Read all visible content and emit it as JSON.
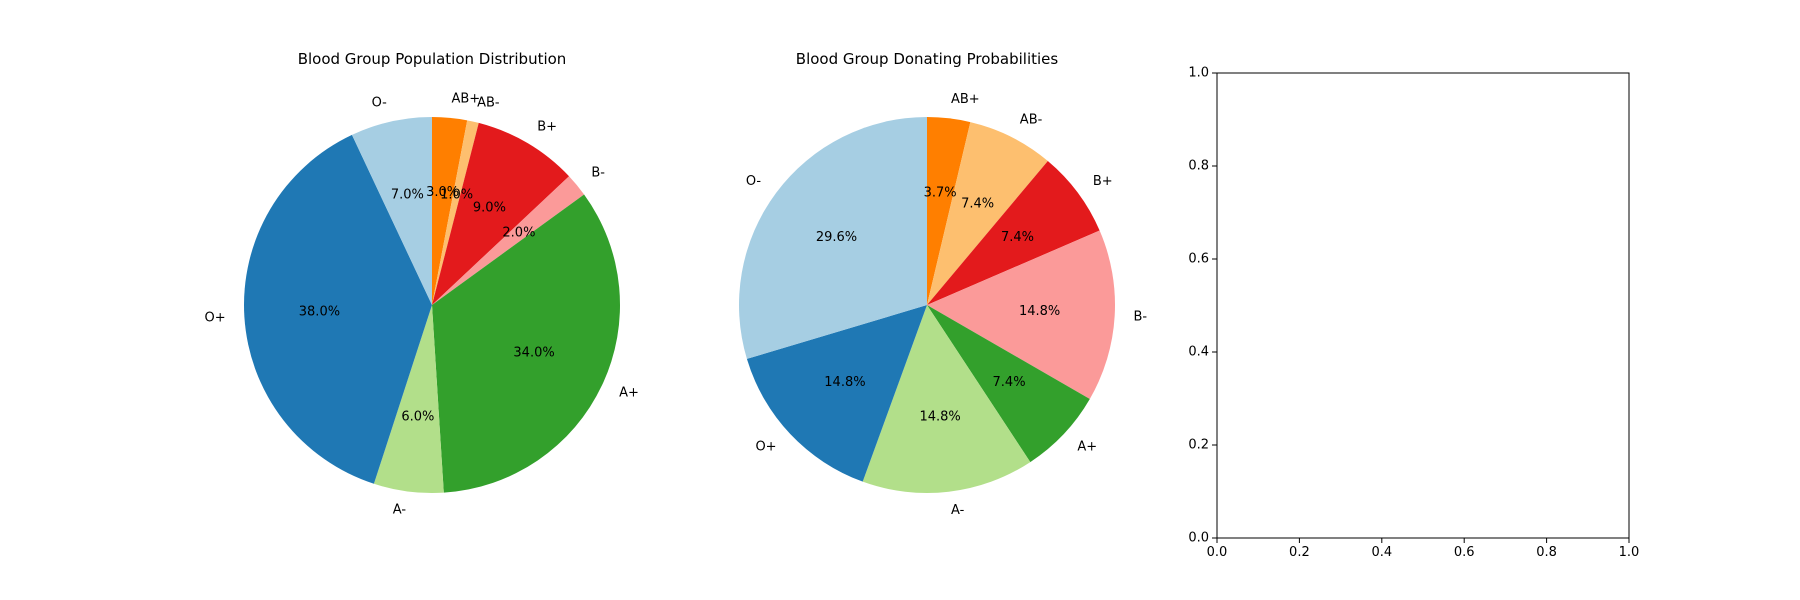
{
  "chart_data": [
    {
      "type": "pie",
      "title": "Blood Group Population Distribution",
      "labels": [
        "AB+",
        "AB-",
        "B+",
        "B-",
        "A+",
        "A-",
        "O+",
        "O-"
      ],
      "values": [
        3.0,
        1.0,
        9.0,
        2.0,
        34.0,
        6.0,
        38.0,
        7.0
      ],
      "pct_labels": [
        "3.0%",
        "1.0%",
        "9.0%",
        "2.0%",
        "34.0%",
        "6.0%",
        "38.0%",
        "7.0%"
      ],
      "colors": [
        "#ff7f00",
        "#fdbf6f",
        "#e31a1c",
        "#fb9a99",
        "#33a02c",
        "#b2df8a",
        "#1f78b4",
        "#a6cee3"
      ],
      "start_angle_deg": 90,
      "direction": "clockwise"
    },
    {
      "type": "pie",
      "title": "Blood Group Donating Probabilities",
      "labels": [
        "AB+",
        "AB-",
        "B+",
        "B-",
        "A+",
        "A-",
        "O+",
        "O-"
      ],
      "values": [
        3.7,
        7.4,
        7.4,
        14.8,
        7.4,
        14.8,
        14.8,
        29.6
      ],
      "pct_labels": [
        "3.7%",
        "7.4%",
        "7.4%",
        "14.8%",
        "7.4%",
        "14.8%",
        "14.8%",
        "29.6%"
      ],
      "colors": [
        "#ff7f00",
        "#fdbf6f",
        "#e31a1c",
        "#fb9a99",
        "#33a02c",
        "#b2df8a",
        "#1f78b4",
        "#a6cee3"
      ],
      "start_angle_deg": 90,
      "direction": "clockwise"
    },
    {
      "type": "scatter",
      "title": "",
      "xlabel": "",
      "ylabel": "",
      "xlim": [
        0.0,
        1.0
      ],
      "ylim": [
        0.0,
        1.0
      ],
      "xticks": [
        "0.0",
        "0.2",
        "0.4",
        "0.6",
        "0.8",
        "1.0"
      ],
      "yticks": [
        "0.0",
        "0.2",
        "0.4",
        "0.6",
        "0.8",
        "1.0"
      ],
      "grid": false,
      "series": []
    }
  ]
}
